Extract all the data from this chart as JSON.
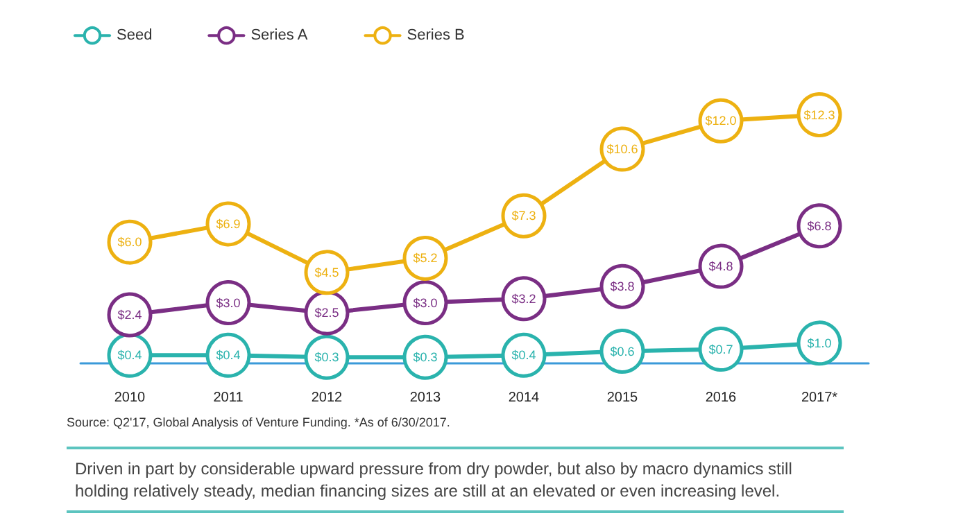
{
  "chart_data": {
    "type": "line",
    "categories": [
      "2010",
      "2011",
      "2012",
      "2013",
      "2014",
      "2015",
      "2016",
      "2017*"
    ],
    "series": [
      {
        "name": "Seed",
        "color": "#2ab3ad",
        "values": [
          0.4,
          0.4,
          0.3,
          0.3,
          0.4,
          0.6,
          0.7,
          1.0
        ],
        "value_labels": [
          "$0.4",
          "$0.4",
          "$0.3",
          "$0.3",
          "$0.4",
          "$0.6",
          "$0.7",
          "$1.0"
        ]
      },
      {
        "name": "Series A",
        "color": "#7a2e84",
        "values": [
          2.4,
          3.0,
          2.5,
          3.0,
          3.2,
          3.8,
          4.8,
          6.8
        ],
        "value_labels": [
          "$2.4",
          "$3.0",
          "$2.5",
          "$3.0",
          "$3.2",
          "$3.8",
          "$4.8",
          "$6.8"
        ]
      },
      {
        "name": "Series B",
        "color": "#edb111",
        "values": [
          6.0,
          6.9,
          4.5,
          5.2,
          7.3,
          10.6,
          12.0,
          12.3
        ],
        "value_labels": [
          "$6.0",
          "$6.9",
          "$4.5",
          "$5.2",
          "$7.3",
          "$10.6",
          "$12.0",
          "$12.3"
        ]
      }
    ],
    "legend": "top left",
    "grid": false,
    "marker": "circle",
    "line_style": "solid",
    "tick_labels": "x",
    "annotations": [
      "Source: Q2'17, Global Analysis of Venture Funding. *As of 6/30/2017.",
      "Driven in part by considerable upward pressure from dry powder, but also by macro dynamics still holding relatively steady, median financing sizes are still at an elevated or even increasing level."
    ]
  }
}
